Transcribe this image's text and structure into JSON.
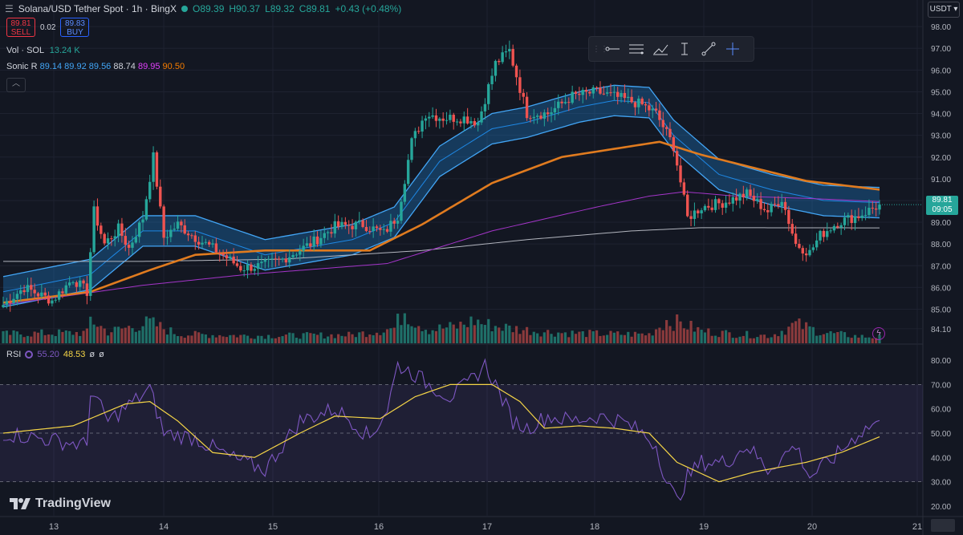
{
  "header": {
    "menu_icon": "hamburger-icon",
    "symbol": "Solana/USD Tether Spot · 1h · BingX",
    "open": "O89.39",
    "high": "H90.37",
    "low": "L89.32",
    "close": "C89.81",
    "change": "+0.43 (+0.48%)"
  },
  "trade": {
    "sell_price": "89.81",
    "sell_label": "SELL",
    "spread": "0.02",
    "buy_price": "89.83",
    "buy_label": "BUY"
  },
  "indicators": {
    "vol_label": "Vol · SOL",
    "vol_value": "13.24 K",
    "sonic_label": "Sonic R",
    "sonic_values": [
      "89.14",
      "89.92",
      "89.56",
      "88.74",
      "89.95",
      "90.50"
    ],
    "sonic_colors": [
      "#42a5f5",
      "#42a5f5",
      "#42a5f5",
      "#d1d4dc",
      "#e040fb",
      "#f57c00"
    ]
  },
  "currency": "USDT",
  "last_price_tag": {
    "price": "89.81",
    "countdown": "09:05"
  },
  "rsi": {
    "label": "RSI",
    "value": "55.20",
    "ma": "48.53",
    "extra1": "ø",
    "extra2": "ø"
  },
  "logo": "TradingView",
  "colors": {
    "up": "#26a69a",
    "down": "#ef5350",
    "band": "#2196f3",
    "orange": "#e07b1f",
    "magenta": "#a435c9",
    "gray": "#b2b5be",
    "rsi": "#7e57c2",
    "rsi_ma": "#f5d547"
  },
  "chart_data": [
    {
      "type": "candlestick",
      "title": "Solana/USD Tether Spot · 1h · BingX",
      "x_ticks": [
        "13",
        "14",
        "15",
        "16",
        "17",
        "18",
        "19",
        "20",
        "21"
      ],
      "y_ticks": [
        "98.00",
        "97.00",
        "96.00",
        "95.00",
        "94.00",
        "93.00",
        "92.00",
        "91.00",
        "90.00",
        "89.00",
        "88.00",
        "87.00",
        "86.00",
        "85.00",
        "84.10"
      ],
      "ylim": [
        83.8,
        98.3
      ],
      "close_path": [
        [
          0,
          85.2
        ],
        [
          6,
          86.0
        ],
        [
          14,
          85.4
        ],
        [
          20,
          86.4
        ],
        [
          24,
          85.8
        ],
        [
          26,
          89.5
        ],
        [
          29,
          88.0
        ],
        [
          33,
          88.7
        ],
        [
          36,
          87.8
        ],
        [
          40,
          89.2
        ],
        [
          43,
          92.0
        ],
        [
          46,
          88.3
        ],
        [
          50,
          88.9
        ],
        [
          55,
          88.3
        ],
        [
          62,
          87.6
        ],
        [
          68,
          86.9
        ],
        [
          74,
          87.0
        ],
        [
          80,
          87.3
        ],
        [
          88,
          88.0
        ],
        [
          95,
          88.8
        ],
        [
          103,
          88.9
        ],
        [
          109,
          88.5
        ],
        [
          113,
          89.3
        ],
        [
          115,
          91.0
        ],
        [
          117,
          92.7
        ],
        [
          121,
          94.0
        ],
        [
          126,
          93.8
        ],
        [
          132,
          93.8
        ],
        [
          136,
          93.6
        ],
        [
          141,
          96.3
        ],
        [
          145,
          96.9
        ],
        [
          150,
          94.0
        ],
        [
          156,
          94.0
        ],
        [
          163,
          94.8
        ],
        [
          170,
          95.0
        ],
        [
          177,
          94.7
        ],
        [
          183,
          94.4
        ],
        [
          187,
          94.0
        ],
        [
          192,
          92.5
        ],
        [
          196,
          89.2
        ],
        [
          200,
          89.7
        ],
        [
          206,
          89.9
        ],
        [
          213,
          90.3
        ],
        [
          219,
          89.5
        ],
        [
          223,
          90.1
        ],
        [
          227,
          88.0
        ],
        [
          231,
          87.6
        ],
        [
          234,
          88.4
        ],
        [
          239,
          89.0
        ],
        [
          245,
          89.3
        ],
        [
          251,
          89.8
        ]
      ],
      "volume_path": [
        [
          0,
          12
        ],
        [
          10,
          13
        ],
        [
          24,
          14
        ],
        [
          25,
          32
        ],
        [
          30,
          15
        ],
        [
          42,
          27
        ],
        [
          50,
          12
        ],
        [
          60,
          11
        ],
        [
          70,
          10
        ],
        [
          80,
          10
        ],
        [
          100,
          11
        ],
        [
          112,
          20
        ],
        [
          115,
          45
        ],
        [
          117,
          32
        ],
        [
          122,
          18
        ],
        [
          130,
          22
        ],
        [
          135,
          30
        ],
        [
          138,
          25
        ],
        [
          145,
          20
        ],
        [
          155,
          15
        ],
        [
          165,
          13
        ],
        [
          175,
          12
        ],
        [
          185,
          12
        ],
        [
          190,
          30
        ],
        [
          195,
          25
        ],
        [
          200,
          16
        ],
        [
          210,
          12
        ],
        [
          220,
          10
        ],
        [
          227,
          25
        ],
        [
          235,
          14
        ],
        [
          245,
          9
        ],
        [
          251,
          8
        ]
      ],
      "overlays": [
        {
          "name": "Sonic R band (blue)",
          "points": [
            [
              0,
              85.8
            ],
            [
              25,
              86.6
            ],
            [
              40,
              88.6
            ],
            [
              55,
              88.6
            ],
            [
              75,
              87.5
            ],
            [
              100,
              88.2
            ],
            [
              112,
              89.0
            ],
            [
              125,
              91.8
            ],
            [
              140,
              93.3
            ],
            [
              150,
              93.6
            ],
            [
              165,
              94.3
            ],
            [
              175,
              94.6
            ],
            [
              185,
              94.5
            ],
            [
              192,
              93.0
            ],
            [
              205,
              91.2
            ],
            [
              220,
              90.5
            ],
            [
              235,
              90.0
            ],
            [
              251,
              89.9
            ]
          ]
        },
        {
          "name": "EMA (orange)",
          "points": [
            [
              0,
              85.3
            ],
            [
              25,
              85.8
            ],
            [
              42,
              86.8
            ],
            [
              55,
              87.5
            ],
            [
              75,
              87.7
            ],
            [
              105,
              87.7
            ],
            [
              120,
              88.9
            ],
            [
              140,
              90.8
            ],
            [
              160,
              92.0
            ],
            [
              180,
              92.5
            ],
            [
              188,
              92.7
            ],
            [
              200,
              92.1
            ],
            [
              215,
              91.5
            ],
            [
              230,
              90.9
            ],
            [
              251,
              90.5
            ]
          ]
        },
        {
          "name": "EMA (magenta)",
          "points": [
            [
              0,
              85.2
            ],
            [
              40,
              86.1
            ],
            [
              70,
              86.6
            ],
            [
              110,
              87.1
            ],
            [
              140,
              88.6
            ],
            [
              170,
              89.7
            ],
            [
              185,
              90.2
            ],
            [
              195,
              90.4
            ],
            [
              210,
              90.2
            ],
            [
              230,
              90.1
            ],
            [
              251,
              89.95
            ]
          ]
        },
        {
          "name": "SMA (gray)",
          "points": [
            [
              0,
              87.2
            ],
            [
              40,
              87.2
            ],
            [
              80,
              87.3
            ],
            [
              120,
              87.7
            ],
            [
              150,
              88.2
            ],
            [
              180,
              88.6
            ],
            [
              200,
              88.75
            ],
            [
              251,
              88.74
            ]
          ]
        }
      ]
    },
    {
      "type": "line",
      "title": "RSI",
      "y_ticks": [
        "80.00",
        "70.00",
        "60.00",
        "50.00",
        "40.00",
        "30.00",
        "20.00"
      ],
      "ylim": [
        17,
        83
      ],
      "levels": [
        70,
        50,
        30
      ],
      "series": [
        {
          "name": "RSI",
          "points": [
            [
              0,
              50
            ],
            [
              10,
              48
            ],
            [
              24,
              45
            ],
            [
              25,
              68
            ],
            [
              30,
              55
            ],
            [
              42,
              68
            ],
            [
              46,
              50
            ],
            [
              55,
              48
            ],
            [
              65,
              40
            ],
            [
              75,
              35
            ],
            [
              85,
              55
            ],
            [
              95,
              60
            ],
            [
              100,
              55
            ],
            [
              105,
              48
            ],
            [
              110,
              60
            ],
            [
              113,
              78
            ],
            [
              117,
              75
            ],
            [
              122,
              70
            ],
            [
              128,
              65
            ],
            [
              133,
              70
            ],
            [
              138,
              78
            ],
            [
              141,
              70
            ],
            [
              146,
              55
            ],
            [
              150,
              52
            ],
            [
              156,
              57
            ],
            [
              163,
              55
            ],
            [
              170,
              57
            ],
            [
              177,
              55
            ],
            [
              183,
              50
            ],
            [
              187,
              45
            ],
            [
              190,
              30
            ],
            [
              193,
              22
            ],
            [
              196,
              32
            ],
            [
              200,
              38
            ],
            [
              207,
              38
            ],
            [
              213,
              45
            ],
            [
              219,
              35
            ],
            [
              227,
              45
            ],
            [
              231,
              32
            ],
            [
              238,
              40
            ],
            [
              245,
              50
            ],
            [
              251,
              55.2
            ]
          ]
        },
        {
          "name": "RSI MA",
          "points": [
            [
              0,
              50
            ],
            [
              20,
              53
            ],
            [
              35,
              62
            ],
            [
              42,
              63
            ],
            [
              50,
              55
            ],
            [
              60,
              42
            ],
            [
              72,
              40
            ],
            [
              85,
              50
            ],
            [
              95,
              57
            ],
            [
              108,
              56
            ],
            [
              118,
              65
            ],
            [
              128,
              70
            ],
            [
              140,
              70
            ],
            [
              148,
              63
            ],
            [
              155,
              52
            ],
            [
              165,
              53
            ],
            [
              175,
              52
            ],
            [
              185,
              50
            ],
            [
              193,
              38
            ],
            [
              205,
              30
            ],
            [
              215,
              34
            ],
            [
              230,
              38
            ],
            [
              240,
              42
            ],
            [
              251,
              48.5
            ]
          ]
        }
      ]
    }
  ]
}
